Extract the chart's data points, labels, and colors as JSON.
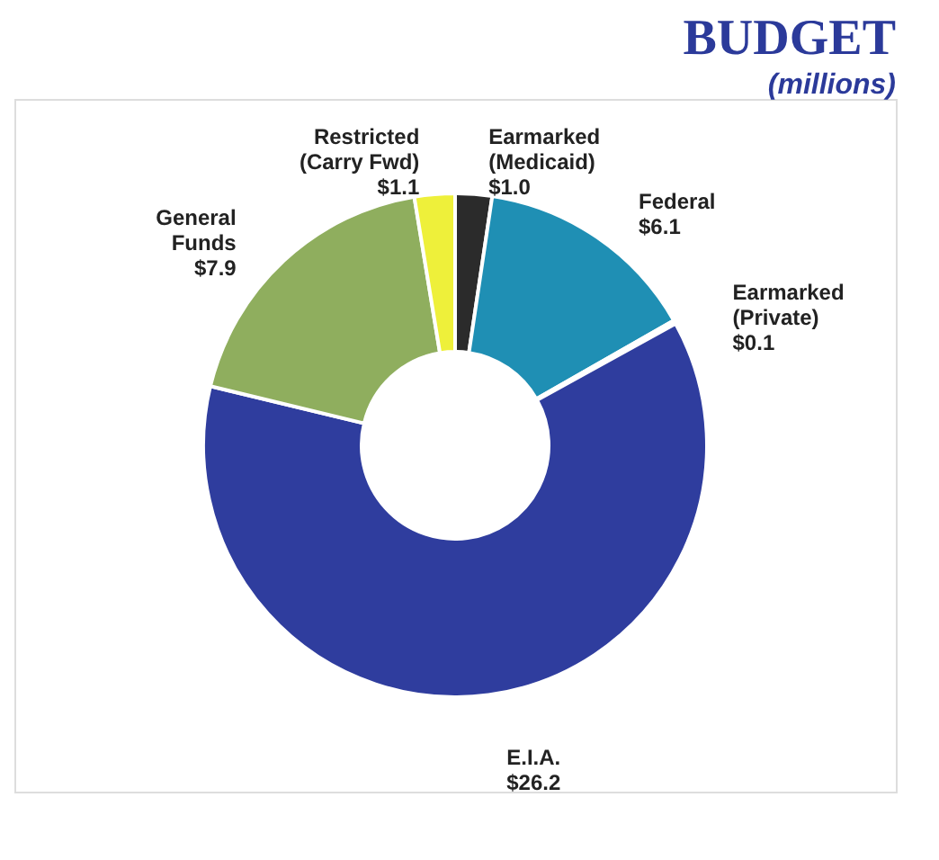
{
  "chart_data": {
    "type": "donut",
    "title": "BUDGET",
    "subtitle": "(millions)",
    "categories": [
      "Earmarked (Medicaid)",
      "Federal",
      "Earmarked (Private)",
      "E.I.A.",
      "General Funds",
      "Restricted (Carry Fwd)"
    ],
    "values": [
      1.0,
      6.1,
      0.1,
      26.2,
      7.9,
      1.1
    ],
    "colors": [
      "#2b2b2b",
      "#1f8fb4",
      "#33414f",
      "#2f3d9e",
      "#8fae5e",
      "#eef03a"
    ],
    "value_labels": [
      "$1.0",
      "$6.1",
      "$0.1",
      "$26.2",
      "$7.9",
      "$1.1"
    ]
  }
}
